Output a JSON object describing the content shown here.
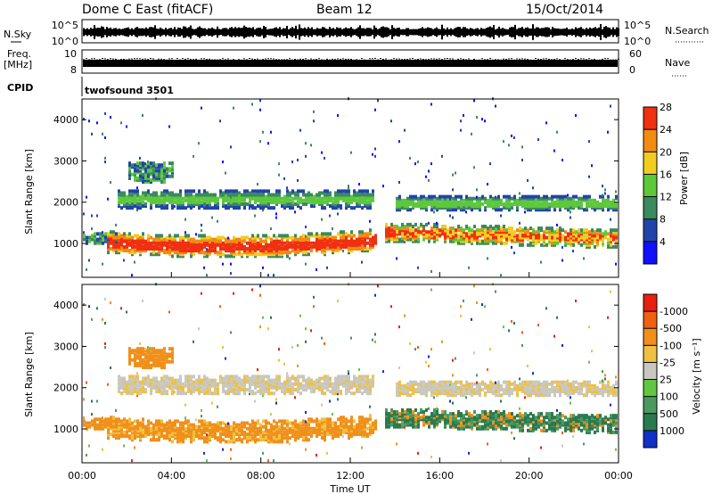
{
  "header": {
    "radar": "Dome C East (fitACF)",
    "beam": "Beam 12",
    "date": "15/Oct/2014"
  },
  "strips": {
    "nsky_label": "N.Sky",
    "nsearch_label": "N.Search",
    "nsky_ticks": [
      "10^5",
      "10^0"
    ],
    "nsearch_ticks": [
      "10^5",
      "10^0"
    ],
    "freq_label": "Freq.",
    "freq_unit": "[MHz]",
    "freq_ticks": [
      "10",
      "8"
    ],
    "nave_label": "Nave",
    "nave_ticks": [
      "60",
      "0"
    ],
    "cpid_label": "CPID",
    "cpid_value": "twofsound 3501"
  },
  "chart_data": [
    {
      "type": "heatmap",
      "name": "power",
      "ylabel": "Slant Range [km]",
      "yticks": [
        1000,
        2000,
        3000,
        4000
      ],
      "ylim": [
        180,
        4500
      ],
      "colorbar_label": "Power [dB]",
      "colorbar_ticks": [
        "4",
        "8",
        "12",
        "16",
        "20",
        "24",
        "28"
      ],
      "colors": [
        "#1010ff",
        "#2244aa",
        "#3a8a5e",
        "#5cc83a",
        "#f2cc20",
        "#f28c10",
        "#f03010"
      ]
    },
    {
      "type": "heatmap",
      "name": "velocity",
      "ylabel": "Slant Range [km]",
      "yticks": [
        1000,
        2000,
        3000,
        4000
      ],
      "ylim": [
        180,
        4500
      ],
      "xlabel": "Time UT",
      "xticks": [
        "00:00",
        "04:00",
        "08:00",
        "12:00",
        "16:00",
        "20:00",
        "00:00"
      ],
      "colorbar_label": "Velocity [m s⁻¹]",
      "colorbar_ticks": [
        "1000",
        "500",
        "100",
        "25",
        "-25",
        "-100",
        "-500",
        "-1000"
      ],
      "colors": [
        "#1030c8",
        "#2a7a50",
        "#4a9a60",
        "#60c840",
        "#c8c8c0",
        "#f0c040",
        "#f0901a",
        "#f06010",
        "#e82010"
      ]
    }
  ]
}
